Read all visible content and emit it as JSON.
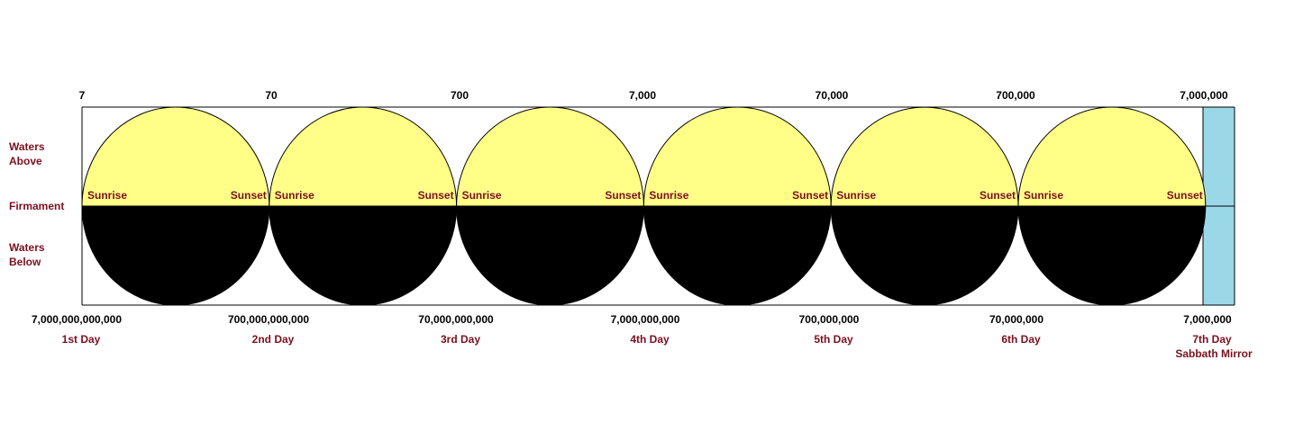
{
  "top_labels": [
    "7",
    "70",
    "700",
    "7,000",
    "70,000",
    "700,000",
    "7,000,000"
  ],
  "side_labels": {
    "above": [
      "Waters",
      "Above"
    ],
    "firmament": "Firmament",
    "below": [
      "Waters",
      "Below"
    ]
  },
  "circles": [
    {
      "left": "Sunrise",
      "right": "Sunset"
    },
    {
      "left": "Sunrise",
      "right": "Sunset"
    },
    {
      "left": "Sunrise",
      "right": "Sunset"
    },
    {
      "left": "Sunrise",
      "right": "Sunset"
    },
    {
      "left": "Sunrise",
      "right": "Sunset"
    },
    {
      "left": "Sunrise",
      "right": "Sunset"
    }
  ],
  "days": [
    {
      "number": "7,000,000,000,000",
      "label": "1st Day"
    },
    {
      "number": "700,000,000,000",
      "label": "2nd Day"
    },
    {
      "number": "70,000,000,000",
      "label": "3rd Day"
    },
    {
      "number": "7,000,000,000",
      "label": "4th Day"
    },
    {
      "number": "700,000,000",
      "label": "5th Day"
    },
    {
      "number": "70,000,000",
      "label": "6th Day"
    },
    {
      "number": "7,000,000",
      "label": "7th Day",
      "note": "Sabbath Mirror"
    }
  ]
}
